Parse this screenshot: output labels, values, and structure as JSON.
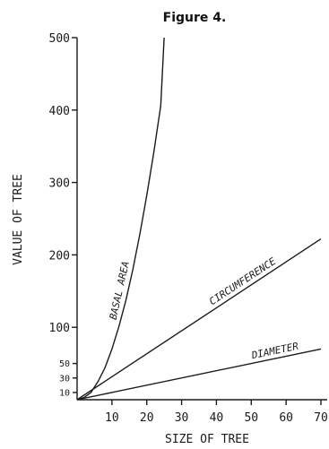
{
  "chart_data": {
    "type": "line",
    "title": "Figure 4.",
    "xlabel": "SIZE OF TREE",
    "ylabel": "VALUE OF TREE",
    "xlim": [
      0,
      70
    ],
    "ylim": [
      0,
      500
    ],
    "x_ticks": [
      10,
      20,
      30,
      40,
      50,
      60,
      70
    ],
    "y_ticks": [
      100,
      200,
      300,
      400,
      500
    ],
    "y_ticks_small": [
      10,
      30,
      50
    ],
    "grid": false,
    "legend": "none",
    "series": [
      {
        "name": "BASAL AREA",
        "x": [
          0,
          2,
          4,
          6,
          8,
          10,
          12,
          14,
          16,
          18,
          20,
          22,
          24,
          25
        ],
        "y": [
          0,
          3,
          10,
          25,
          44,
          70,
          101,
          137,
          180,
          228,
          282,
          341,
          406,
          500
        ]
      },
      {
        "name": "CIRCUMFERENCE",
        "x": [
          0,
          70
        ],
        "y": [
          0,
          222
        ]
      },
      {
        "name": "DIAMETER",
        "x": [
          0,
          70
        ],
        "y": [
          0,
          70
        ]
      }
    ]
  }
}
